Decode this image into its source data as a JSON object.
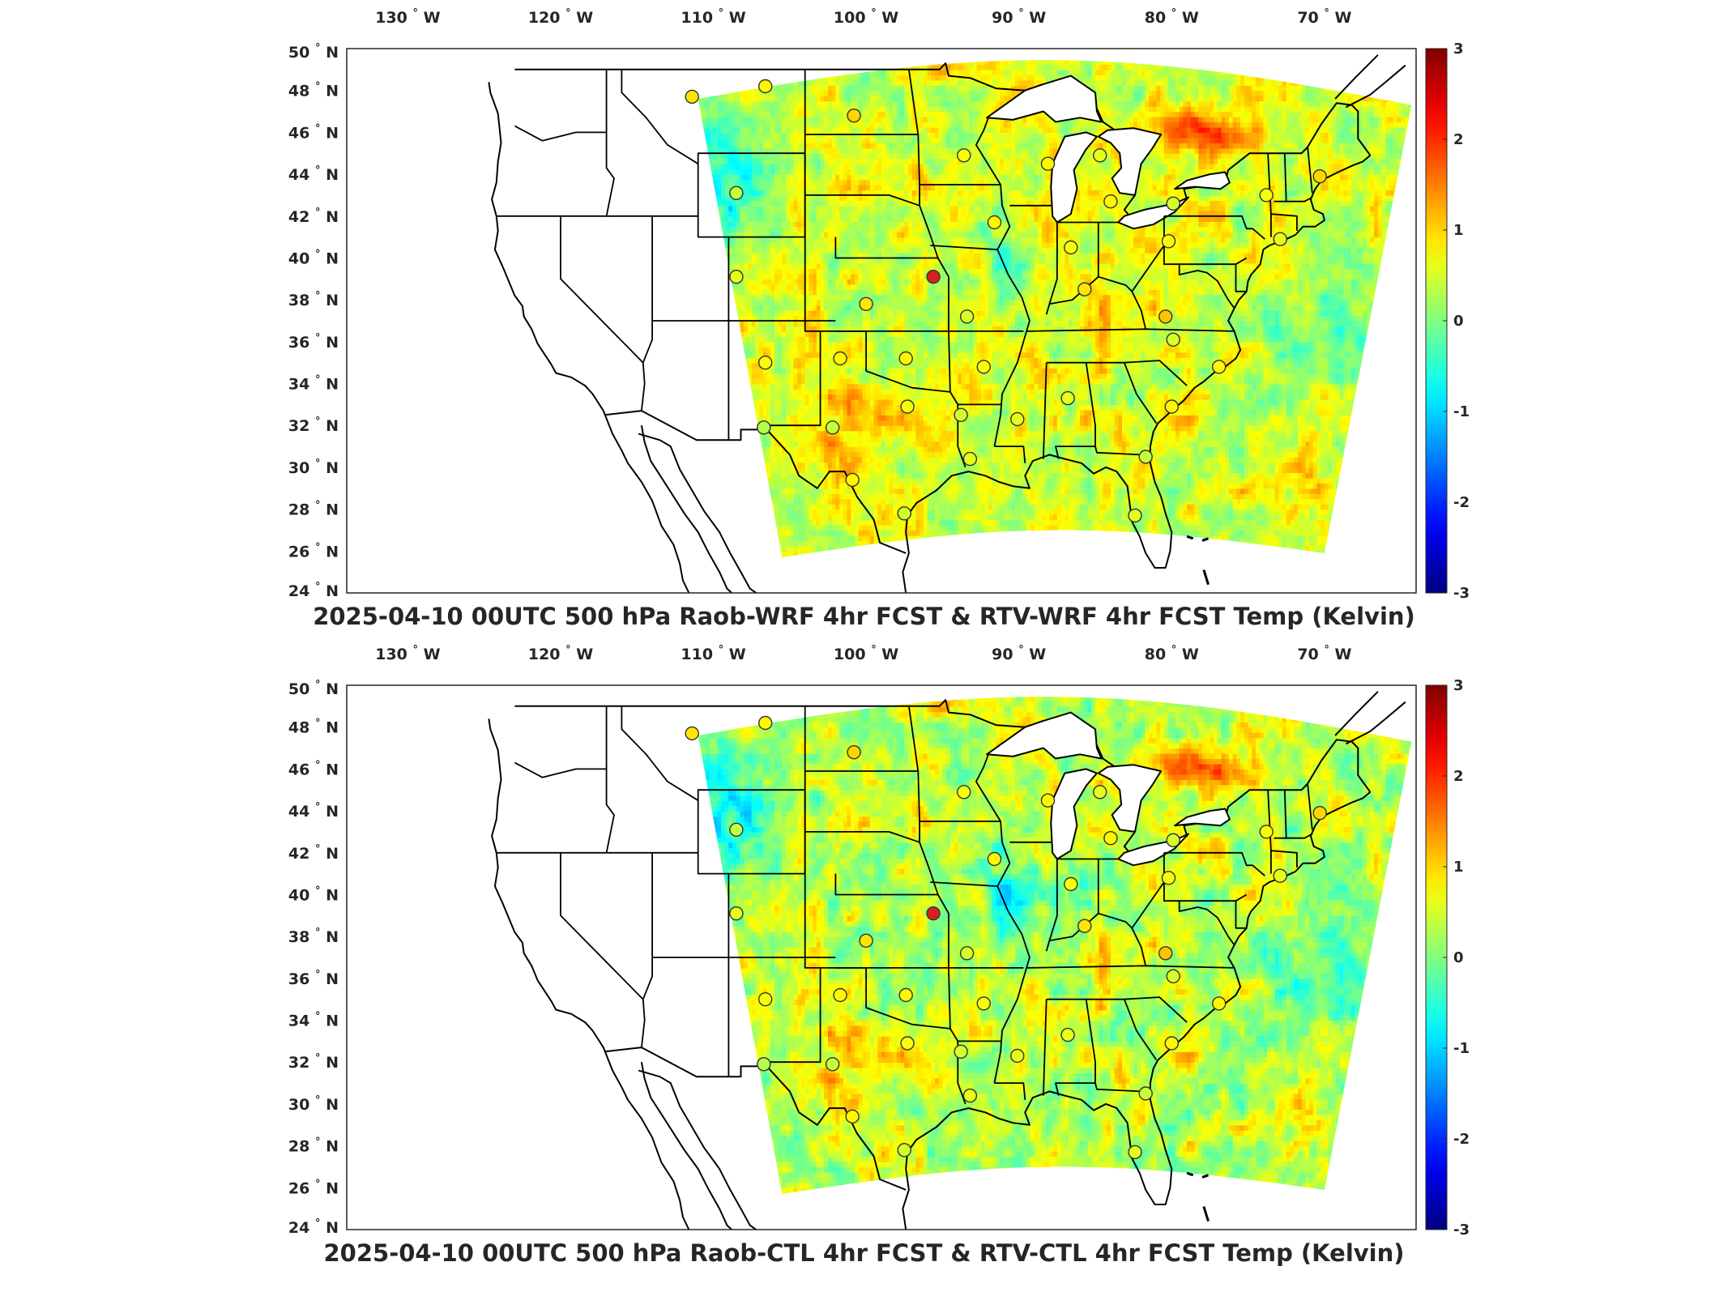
{
  "panels": [
    {
      "title": "2025-04-10 00UTC 500 hPa Raob-WRF 4hr FCST & RTV-WRF 4hr FCST Temp (Kelvin)",
      "field_variant": "wrf"
    },
    {
      "title": "2025-04-10 00UTC 500 hPa Raob-CTL 4hr FCST & RTV-CTL 4hr FCST Temp (Kelvin)",
      "field_variant": "ctl"
    }
  ],
  "lon_ticks": [
    {
      "value": -130,
      "label": "130",
      "hemi": "W"
    },
    {
      "value": -120,
      "label": "120",
      "hemi": "W"
    },
    {
      "value": -110,
      "label": "110",
      "hemi": "W"
    },
    {
      "value": -100,
      "label": "100",
      "hemi": "W"
    },
    {
      "value": -90,
      "label": "90",
      "hemi": "W"
    },
    {
      "value": -80,
      "label": "80",
      "hemi": "W"
    },
    {
      "value": -70,
      "label": "70",
      "hemi": "W"
    }
  ],
  "lat_ticks": [
    {
      "value": 50,
      "label": "50",
      "hemi": "N"
    },
    {
      "value": 48,
      "label": "48",
      "hemi": "N"
    },
    {
      "value": 46,
      "label": "46",
      "hemi": "N"
    },
    {
      "value": 44,
      "label": "44",
      "hemi": "N"
    },
    {
      "value": 42,
      "label": "42",
      "hemi": "N"
    },
    {
      "value": 40,
      "label": "40",
      "hemi": "N"
    },
    {
      "value": 38,
      "label": "38",
      "hemi": "N"
    },
    {
      "value": 36,
      "label": "36",
      "hemi": "N"
    },
    {
      "value": 34,
      "label": "34",
      "hemi": "N"
    },
    {
      "value": 32,
      "label": "32",
      "hemi": "N"
    },
    {
      "value": 30,
      "label": "30",
      "hemi": "N"
    },
    {
      "value": 28,
      "label": "28",
      "hemi": "N"
    },
    {
      "value": 26,
      "label": "26",
      "hemi": "N"
    },
    {
      "value": 24,
      "label": "24",
      "hemi": "N"
    }
  ],
  "degree_symbol": "°",
  "colorbar": {
    "min": -3,
    "max": 3,
    "ticks": [
      "3",
      "2",
      "1",
      "0",
      "-1",
      "-2",
      "-3"
    ],
    "colormap": "jet"
  },
  "colors": {
    "frame": "#262626",
    "land_background": "#ffffff",
    "station_outline": "#333333",
    "highlight_station": "#d62020"
  },
  "stations": [
    {
      "lat": 47.7,
      "lon": -111.4,
      "diff": 0.9
    },
    {
      "lat": 48.2,
      "lon": -106.6,
      "diff": 0.8
    },
    {
      "lat": 46.8,
      "lon": -100.8,
      "diff": 1.0
    },
    {
      "lat": 44.9,
      "lon": -93.6,
      "diff": 0.7
    },
    {
      "lat": 44.5,
      "lon": -88.1,
      "diff": 0.8
    },
    {
      "lat": 44.9,
      "lon": -84.7,
      "diff": 0.6
    },
    {
      "lat": 43.1,
      "lon": -108.5,
      "diff": 0.4
    },
    {
      "lat": 42.7,
      "lon": -84.0,
      "diff": 0.8
    },
    {
      "lat": 42.6,
      "lon": -79.9,
      "diff": 0.5
    },
    {
      "lat": 43.0,
      "lon": -73.8,
      "diff": 0.7
    },
    {
      "lat": 43.9,
      "lon": -70.3,
      "diff": 1.0
    },
    {
      "lat": 41.7,
      "lon": -91.6,
      "diff": 0.8
    },
    {
      "lat": 40.5,
      "lon": -86.6,
      "diff": 0.7
    },
    {
      "lat": 40.8,
      "lon": -80.2,
      "diff": 0.7
    },
    {
      "lat": 40.9,
      "lon": -72.9,
      "diff": 0.6
    },
    {
      "lat": 39.1,
      "lon": -108.5,
      "diff": 0.6
    },
    {
      "lat": 39.1,
      "lon": -95.6,
      "diff": 2.4
    },
    {
      "lat": 38.5,
      "lon": -85.7,
      "diff": 0.9
    },
    {
      "lat": 37.8,
      "lon": -100.0,
      "diff": 0.9
    },
    {
      "lat": 37.2,
      "lon": -93.4,
      "diff": 0.5
    },
    {
      "lat": 37.2,
      "lon": -80.4,
      "diff": 1.1
    },
    {
      "lat": 36.1,
      "lon": -79.9,
      "diff": 0.5
    },
    {
      "lat": 35.0,
      "lon": -106.6,
      "diff": 0.7
    },
    {
      "lat": 35.2,
      "lon": -101.7,
      "diff": 0.8
    },
    {
      "lat": 35.2,
      "lon": -97.4,
      "diff": 0.8
    },
    {
      "lat": 34.8,
      "lon": -92.3,
      "diff": 0.7
    },
    {
      "lat": 34.8,
      "lon": -76.9,
      "diff": 0.8
    },
    {
      "lat": 33.3,
      "lon": -86.8,
      "diff": 0.6
    },
    {
      "lat": 32.9,
      "lon": -97.3,
      "diff": 0.7
    },
    {
      "lat": 32.9,
      "lon": -80.0,
      "diff": 0.8
    },
    {
      "lat": 32.5,
      "lon": -93.8,
      "diff": 0.5
    },
    {
      "lat": 32.3,
      "lon": -90.1,
      "diff": 0.6
    },
    {
      "lat": 31.9,
      "lon": -106.7,
      "diff": 0.3
    },
    {
      "lat": 31.9,
      "lon": -102.2,
      "diff": 0.4
    },
    {
      "lat": 30.5,
      "lon": -81.7,
      "diff": 0.4
    },
    {
      "lat": 30.4,
      "lon": -93.2,
      "diff": 0.6
    },
    {
      "lat": 29.4,
      "lon": -100.9,
      "diff": 0.8
    },
    {
      "lat": 27.8,
      "lon": -97.5,
      "diff": 0.5
    },
    {
      "lat": 27.7,
      "lon": -82.4,
      "diff": 0.6
    }
  ]
}
